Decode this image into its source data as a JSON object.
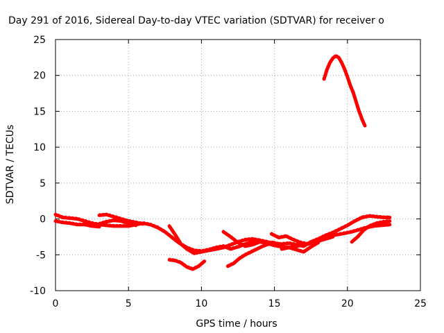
{
  "chart_data": {
    "type": "line",
    "title": "Day 291 of 2016, Sidereal Day-to-day VTEC variation (SDTVAR) for receiver o",
    "xlabel": "GPS time / hours",
    "ylabel": "SDTVAR / TECUs",
    "xlim": [
      0,
      25
    ],
    "ylim": [
      -10,
      25
    ],
    "xticks": [
      0,
      5,
      10,
      15,
      20,
      25
    ],
    "yticks": [
      -10,
      -5,
      0,
      5,
      10,
      15,
      20,
      25
    ],
    "grid": true,
    "legend": "none",
    "series_color": "#ff0000",
    "series": [
      {
        "x": [
          0,
          0.5,
          1,
          1.5,
          2,
          2.5,
          3,
          3.5,
          4,
          4.5,
          5,
          5.5,
          6,
          6.5,
          7
        ],
        "y": [
          0.6,
          0.2,
          0.1,
          0,
          -0.3,
          -0.6,
          -0.8,
          -0.9,
          -1.0,
          -1.0,
          -1.0,
          -0.8,
          -0.6,
          -0.8,
          -1.2
        ]
      },
      {
        "x": [
          0,
          0.5,
          1,
          1.5,
          2,
          2.5,
          3
        ],
        "y": [
          -0.3,
          -0.5,
          -0.6,
          -0.8,
          -0.8,
          -1.0,
          -1.1
        ]
      },
      {
        "x": [
          3,
          3.5,
          4,
          4.5,
          5,
          5.5,
          6
        ],
        "y": [
          0.5,
          0.6,
          0.3,
          0,
          -0.3,
          -0.5,
          -0.7
        ]
      },
      {
        "x": [
          3,
          3.5,
          4,
          4.5,
          5,
          5.5
        ],
        "y": [
          -0.7,
          -0.4,
          -0.2,
          -0.3,
          -0.6,
          -0.9
        ]
      },
      {
        "x": [
          7,
          7.5,
          8,
          8.5,
          9,
          9.5,
          10,
          10.5,
          11,
          11.5,
          12,
          12.5,
          13,
          13.5,
          14,
          14.5,
          15,
          15.5,
          16,
          16.5,
          17,
          17.5,
          18,
          18.5,
          19,
          19.5,
          20,
          20.5,
          21,
          21.5,
          22,
          22.5,
          22.9
        ],
        "y": [
          -1.2,
          -1.8,
          -2.6,
          -3.4,
          -4.0,
          -4.4,
          -4.5,
          -4.3,
          -4.0,
          -3.8,
          -4.2,
          -3.9,
          -3.5,
          -3.2,
          -3.0,
          -3.2,
          -3.5,
          -3.5,
          -3.4,
          -3.6,
          -3.8,
          -3.2,
          -2.8,
          -2.3,
          -1.9,
          -1.4,
          -0.9,
          -0.3,
          0.2,
          0.4,
          0.3,
          0.2,
          0.2
        ]
      },
      {
        "x": [
          7.8,
          8.2,
          8.6,
          9,
          9.5,
          10,
          10.5,
          11,
          11.5,
          12,
          12.5,
          13,
          13.5,
          14,
          14.5,
          15
        ],
        "y": [
          -1.0,
          -2.2,
          -3.5,
          -4.2,
          -4.8,
          -4.6,
          -4.4,
          -4.2,
          -4.0,
          -3.6,
          -3.2,
          -2.9,
          -2.8,
          -3.0,
          -3.3,
          -3.3
        ]
      },
      {
        "x": [
          7.8,
          8.2,
          8.6,
          9,
          9.4,
          9.8,
          10.2
        ],
        "y": [
          -5.7,
          -5.8,
          -6.1,
          -6.7,
          -7.0,
          -6.6,
          -5.9
        ]
      },
      {
        "x": [
          11.8,
          12.2,
          12.6,
          13,
          13.4,
          13.8,
          14.2,
          14.6,
          15,
          15.4
        ],
        "y": [
          -6.6,
          -6.2,
          -5.5,
          -5.0,
          -4.6,
          -4.2,
          -3.8,
          -3.5,
          -3.4,
          -3.5
        ]
      },
      {
        "x": [
          11.5,
          12,
          12.5,
          13,
          13.5,
          14,
          14.5,
          15,
          15.5,
          16,
          16.5,
          17,
          17.5,
          18
        ],
        "y": [
          -1.8,
          -2.5,
          -3.3,
          -3.8,
          -3.6,
          -3.2,
          -3.4,
          -3.7,
          -3.9,
          -4.0,
          -4.3,
          -4.6,
          -3.9,
          -3.3
        ]
      },
      {
        "x": [
          14.8,
          15.3,
          15.8,
          16.3,
          16.8,
          17.3,
          17.8,
          18.3,
          18.8,
          19.3,
          19.8,
          20.3,
          20.8,
          21.3,
          21.8,
          22.3,
          22.9
        ],
        "y": [
          -2.1,
          -2.6,
          -2.4,
          -2.9,
          -3.3,
          -3.5,
          -3.1,
          -2.6,
          -2.3,
          -2.2,
          -2.0,
          -1.8,
          -1.5,
          -1.2,
          -1.0,
          -0.9,
          -0.8
        ]
      },
      {
        "x": [
          15.5,
          16,
          16.5,
          17,
          17.5,
          18,
          18.5,
          19
        ],
        "y": [
          -4.2,
          -4.0,
          -3.8,
          -3.6,
          -3.4,
          -3.1,
          -2.8,
          -2.5
        ]
      },
      {
        "x": [
          20.3,
          20.7,
          21.1,
          21.5,
          22,
          22.5,
          22.9
        ],
        "y": [
          -3.2,
          -2.5,
          -1.6,
          -1.0,
          -0.6,
          -0.4,
          -0.3
        ]
      },
      {
        "x": [
          18.4,
          18.6,
          18.8,
          19.0,
          19.2,
          19.4,
          19.6,
          19.8,
          20.0,
          20.2,
          20.4,
          20.6,
          20.8,
          21.0,
          21.2
        ],
        "y": [
          19.5,
          20.8,
          21.8,
          22.4,
          22.7,
          22.5,
          21.8,
          20.9,
          19.8,
          18.6,
          17.6,
          16.3,
          15.0,
          13.9,
          13.0
        ]
      }
    ]
  }
}
